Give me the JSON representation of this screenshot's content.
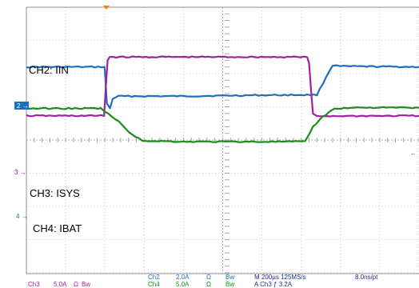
{
  "chart_data": {
    "type": "line",
    "time_per_division": "200µs",
    "divisions": 10,
    "x_unit": "divisions",
    "series": [
      {
        "name": "CH2: IIN",
        "channel": "2",
        "color": "#1f6fbf",
        "scale": "2.0A",
        "points": [
          [
            0,
            -2.2
          ],
          [
            1.99,
            -2.2
          ],
          [
            2.0,
            -2.05
          ],
          [
            2.05,
            -1.1
          ],
          [
            2.13,
            -0.95
          ],
          [
            2.2,
            -1.25
          ],
          [
            2.35,
            -1.32
          ],
          [
            4.0,
            -1.32
          ],
          [
            6.0,
            -1.35
          ],
          [
            7.4,
            -1.36
          ],
          [
            7.55,
            -1.7
          ],
          [
            7.7,
            -2.05
          ],
          [
            7.8,
            -2.25
          ],
          [
            8.0,
            -2.22
          ],
          [
            10.0,
            -2.2
          ]
        ]
      },
      {
        "name": "CH3: ISYS",
        "channel": "3",
        "color": "#a020a0",
        "scale": "5.0A",
        "points": [
          [
            0,
            -0.73
          ],
          [
            1.98,
            -0.73
          ],
          [
            2.02,
            -1.55
          ],
          [
            2.07,
            -2.4
          ],
          [
            2.12,
            -2.5
          ],
          [
            7.15,
            -2.5
          ],
          [
            7.2,
            -2.3
          ],
          [
            7.25,
            -1.5
          ],
          [
            7.3,
            -0.78
          ],
          [
            7.4,
            -0.72
          ],
          [
            10.0,
            -0.73
          ]
        ]
      },
      {
        "name": "CH4: IBAT",
        "channel": "4",
        "color": "#1c8c1c",
        "scale": "5.0A",
        "points": [
          [
            0,
            -0.95
          ],
          [
            1.9,
            -0.95
          ],
          [
            2.35,
            -0.55
          ],
          [
            2.7,
            -0.15
          ],
          [
            2.95,
            0.02
          ],
          [
            4.0,
            0.05
          ],
          [
            6.0,
            0.05
          ],
          [
            7.1,
            0.05
          ],
          [
            7.3,
            -0.4
          ],
          [
            7.55,
            -0.7
          ],
          [
            7.85,
            -0.95
          ],
          [
            8.5,
            -0.98
          ],
          [
            10.0,
            -0.97
          ]
        ]
      }
    ]
  },
  "status_bar": {
    "ch3": {
      "label": "Ch3",
      "scale": "5.0A",
      "coupling": "Ω",
      "bw": "Bw"
    },
    "ch2": {
      "label": "Ch2",
      "scale": "2.0A",
      "coupling": "Ω",
      "bw": "Bw"
    },
    "ch4": {
      "label": "Ch4",
      "scale": "5.0A",
      "coupling": "Ω",
      "bw": "Bw"
    },
    "timebase": "M 200µs 125MS/s",
    "record": "8.0ns/pt",
    "trigger": "A  Ch3  ƒ 3.2A"
  },
  "colors": {
    "ch2": "#1f6fbf",
    "ch3": "#a020a0",
    "ch4": "#1c8c1c",
    "trigger_marker": "#ff7a00"
  }
}
